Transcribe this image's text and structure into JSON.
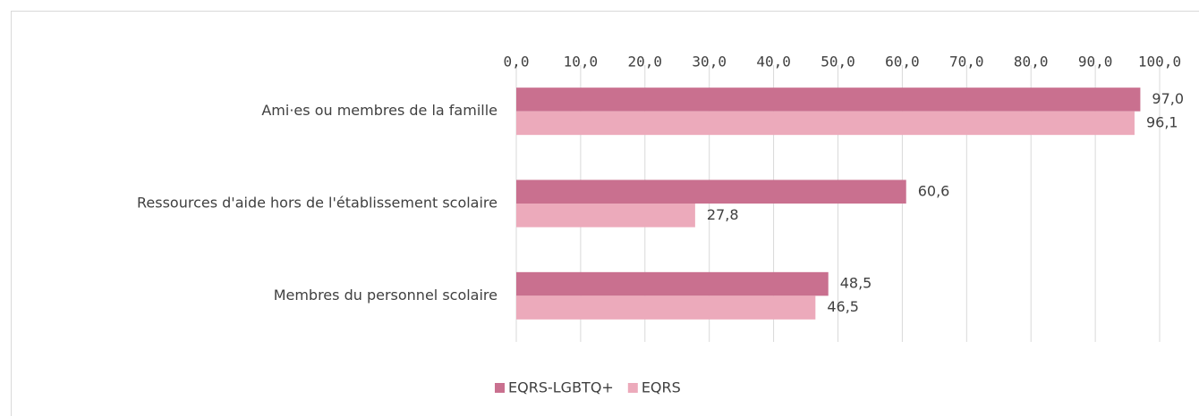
{
  "chart_data": {
    "type": "barh",
    "categories": [
      "Ami·es ou membres de la famille",
      "Ressources d'aide hors de l'établissement scolaire",
      "Membres du personnel scolaire"
    ],
    "series": [
      {
        "name": "EQRS-LGBTQ+",
        "color": "#c9708f",
        "values": [
          97.0,
          60.6,
          48.5
        ],
        "value_labels": [
          "97,0",
          "60,6",
          "48,5"
        ]
      },
      {
        "name": "EQRS",
        "color": "#ecaabb",
        "values": [
          96.1,
          27.8,
          46.5
        ],
        "value_labels": [
          "96,1",
          "27,8",
          "46,5"
        ]
      }
    ],
    "xlim": [
      0,
      100
    ],
    "xticks": [
      {
        "value": 0,
        "label": "0,0"
      },
      {
        "value": 10,
        "label": "10,0"
      },
      {
        "value": 20,
        "label": "20,0"
      },
      {
        "value": 30,
        "label": "30,0"
      },
      {
        "value": 40,
        "label": "40,0"
      },
      {
        "value": 50,
        "label": "50,0"
      },
      {
        "value": 60,
        "label": "60,0"
      },
      {
        "value": 70,
        "label": "70,0"
      },
      {
        "value": 80,
        "label": "80,0"
      },
      {
        "value": 90,
        "label": "90,0"
      },
      {
        "value": 100,
        "label": "100,0"
      }
    ],
    "grid": true,
    "legend": "bottom"
  }
}
